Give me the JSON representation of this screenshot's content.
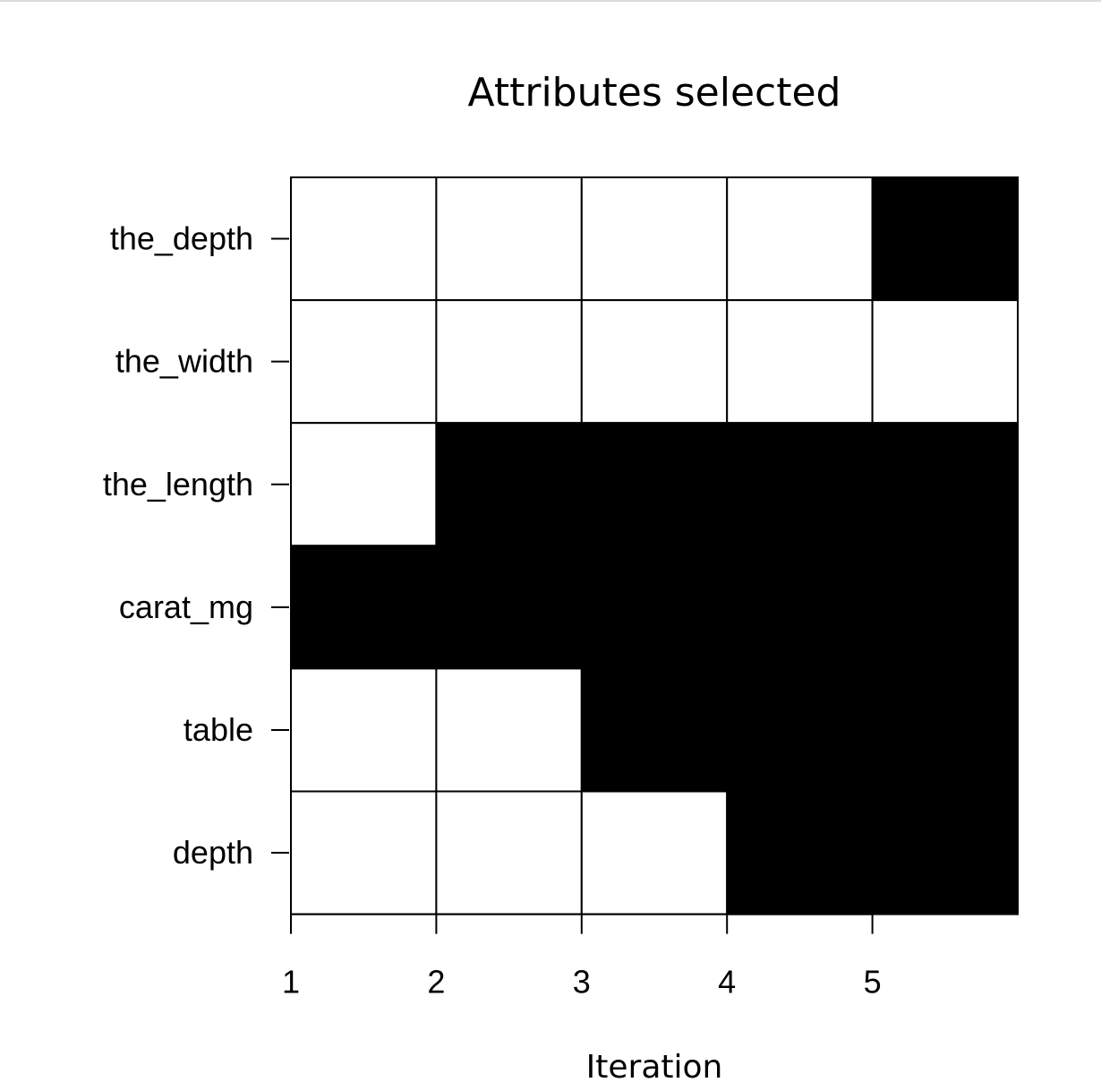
{
  "chart_data": {
    "type": "heatmap",
    "title": "Attributes selected",
    "xlabel": "Iteration",
    "ylabel": "",
    "x": [
      1,
      2,
      3,
      4,
      5
    ],
    "x_ticks": [
      "1",
      "2",
      "3",
      "4",
      "5"
    ],
    "xlim": [
      1,
      6
    ],
    "rows": [
      "the_depth",
      "the_width",
      "the_length",
      "carat_mg",
      "table",
      "depth"
    ],
    "matrix": [
      [
        0,
        0,
        0,
        0,
        1
      ],
      [
        0,
        0,
        0,
        0,
        0
      ],
      [
        0,
        1,
        1,
        1,
        1
      ],
      [
        1,
        1,
        1,
        1,
        1
      ],
      [
        0,
        0,
        1,
        1,
        1
      ],
      [
        0,
        0,
        0,
        1,
        1
      ]
    ],
    "colors": {
      "selected": "#000000",
      "not_selected": "#ffffff",
      "grid": "#000000"
    }
  }
}
